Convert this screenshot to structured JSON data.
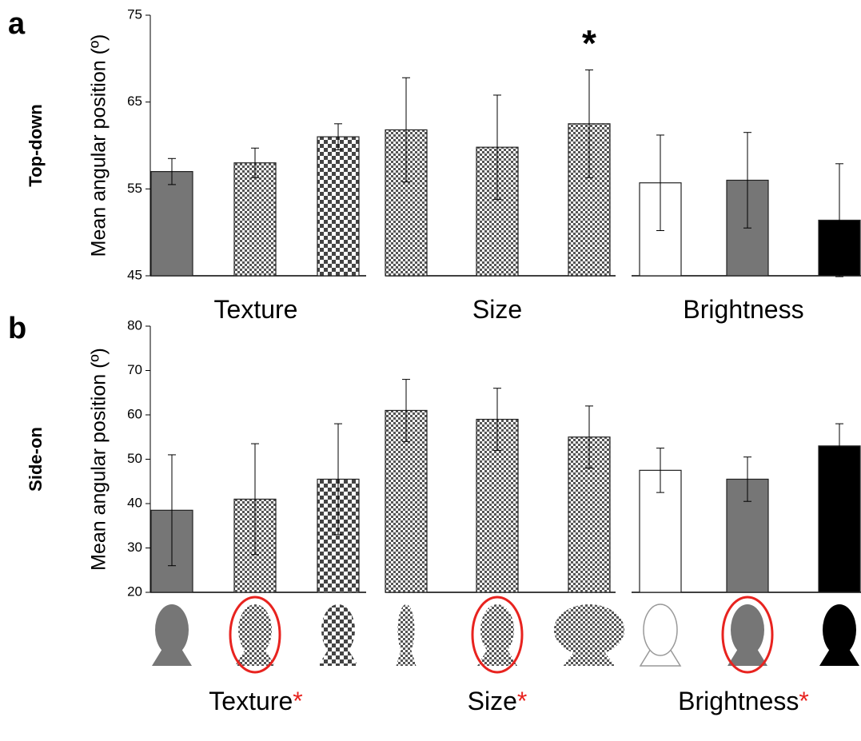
{
  "chart_data": [
    {
      "type": "bar",
      "panel_label": "a",
      "row_label": "Top-down",
      "y_label": "Mean angular position (º)",
      "ylim": [
        45,
        75
      ],
      "yticks": [
        45,
        55,
        65,
        75
      ],
      "groups": [
        {
          "name": "Texture",
          "values": [
            57,
            58,
            61
          ],
          "errors": [
            1.5,
            1.7,
            1.5
          ],
          "fills": [
            "#767676",
            "fine",
            "coarse"
          ]
        },
        {
          "name": "Size",
          "values": [
            61.8,
            59.8,
            62.5
          ],
          "errors": [
            6,
            6,
            6.2
          ],
          "fills": [
            "fine",
            "fine",
            "fine"
          ],
          "annotation": "*"
        },
        {
          "name": "Brightness",
          "values": [
            55.7,
            56,
            51.4
          ],
          "errors": [
            5.5,
            5.5,
            6.5
          ],
          "fills": [
            "#ffffff",
            "#767676",
            "#000000"
          ]
        }
      ]
    },
    {
      "type": "bar",
      "panel_label": "b",
      "row_label": "Side-on",
      "y_label": "Mean angular position (º)",
      "ylim": [
        20,
        80
      ],
      "yticks": [
        20,
        30,
        40,
        50,
        60,
        70,
        80
      ],
      "groups": [
        {
          "name": "Texture",
          "marker": "*",
          "values": [
            38.5,
            41,
            45.5
          ],
          "errors": [
            12.5,
            12.5,
            12.5
          ],
          "fills": [
            "#767676",
            "fine",
            "coarse"
          ]
        },
        {
          "name": "Size",
          "marker": "*",
          "values": [
            61,
            59,
            55
          ],
          "errors": [
            7,
            7,
            7
          ],
          "fills": [
            "fine",
            "fine",
            "fine"
          ]
        },
        {
          "name": "Brightness",
          "marker": "*",
          "values": [
            47.5,
            45.5,
            53
          ],
          "errors": [
            5,
            5,
            5
          ],
          "fills": [
            "#ffffff",
            "#767676",
            "#000000"
          ]
        }
      ]
    }
  ]
}
